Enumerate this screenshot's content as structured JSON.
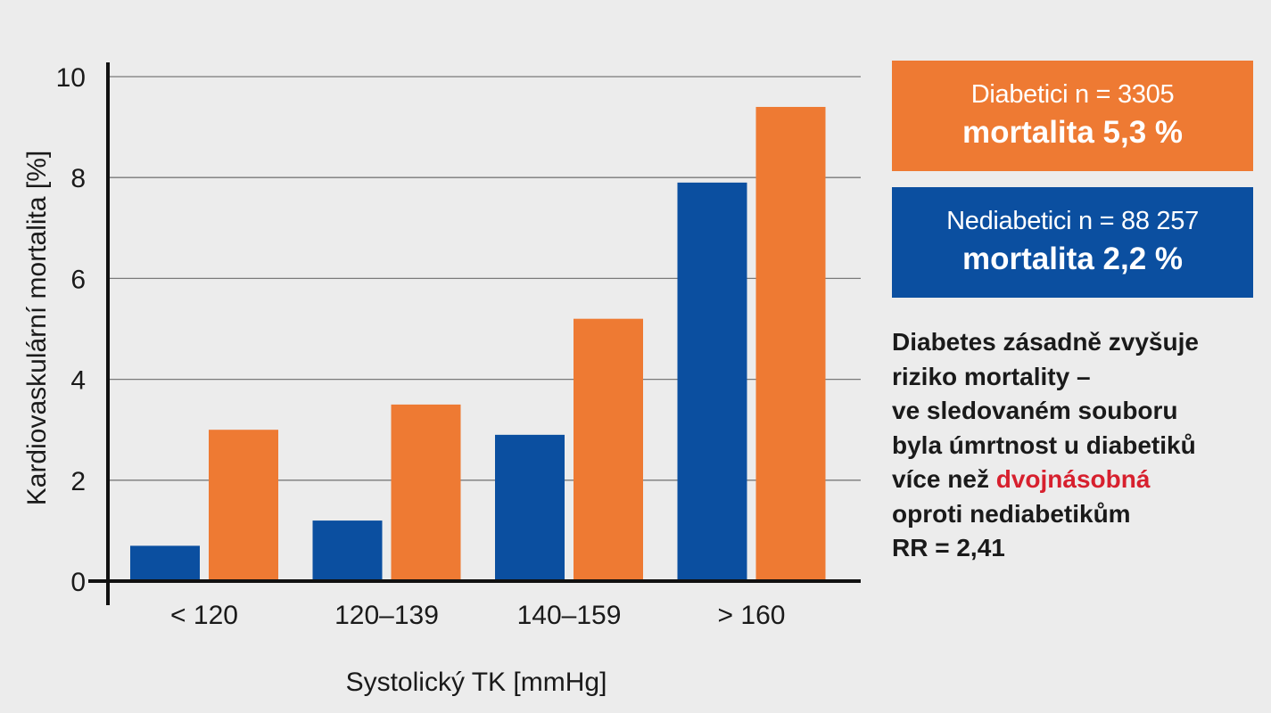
{
  "chart_data": {
    "type": "bar",
    "title": "",
    "xlabel": "Systolický TK [mmHg]",
    "ylabel": "Kardiovaskulární mortalita [%]",
    "categories": [
      "< 120",
      "120–139",
      "140–159",
      "> 160"
    ],
    "ylim": [
      0,
      10
    ],
    "yticks": [
      0,
      2,
      4,
      6,
      8,
      10
    ],
    "grid": true,
    "series": [
      {
        "name": "Nediabetici n = 88 257",
        "color": "#0b4fa0",
        "values": [
          0.7,
          1.2,
          2.9,
          7.9
        ]
      },
      {
        "name": "Diabetici n = 3305",
        "color": "#ee7a33",
        "values": [
          3.0,
          3.5,
          5.2,
          9.4
        ]
      }
    ]
  },
  "legend": {
    "diabetic": {
      "label": "Diabetici n = 3305",
      "mortality": "mortalita 5,3 %",
      "color": "#ee7a33"
    },
    "nondiabetic": {
      "label": "Nediabetici n = 88 257",
      "mortality": "mortalita 2,2 %",
      "color": "#0b4fa0"
    }
  },
  "note": {
    "line1": "Diabetes zásadně zvyšuje",
    "line2": "riziko mortality –",
    "line3": "ve sledovaném souboru",
    "line4": "byla úmrtnost u diabetiků",
    "line5_prefix": "více než ",
    "line5_highlight": "dvojnásobná",
    "line6": "oproti nediabetikům",
    "line7": "RR = 2,41",
    "highlight_color": "#d7202e"
  }
}
